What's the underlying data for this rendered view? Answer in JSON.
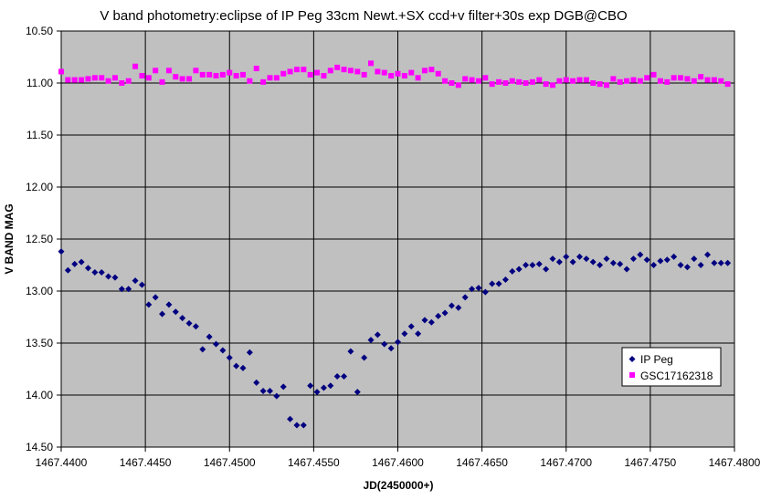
{
  "chart_data": {
    "type": "scatter",
    "title": "V band photometry:eclipse of IP Peg 33cm Newt.+SX ccd+v filter+30s exp DGB@CBO",
    "xlabel": "JD(2450000+)",
    "ylabel": "V BAND MAG",
    "xlim": [
      1467.44,
      1467.48
    ],
    "ylim": [
      10.5,
      14.5
    ],
    "y_inverted": true,
    "grid": true,
    "legend": "bottom-right",
    "plot_bg": "#c0c0c0",
    "x_ticks": [
      "1467.4400",
      "1467.4450",
      "1467.4500",
      "1467.4550",
      "1467.4600",
      "1467.4650",
      "1467.4700",
      "1467.4750",
      "1467.4800"
    ],
    "y_ticks": [
      "10.50",
      "11.00",
      "11.50",
      "12.00",
      "12.50",
      "13.00",
      "13.50",
      "14.00",
      "14.50"
    ],
    "series": [
      {
        "name": "IP Peg",
        "color": "#000080",
        "marker": "diamond",
        "points": [
          [
            1467.44,
            12.62
          ],
          [
            1467.4404,
            12.8
          ],
          [
            1467.4408,
            12.74
          ],
          [
            1467.4412,
            12.72
          ],
          [
            1467.4416,
            12.78
          ],
          [
            1467.442,
            12.82
          ],
          [
            1467.4424,
            12.82
          ],
          [
            1467.4428,
            12.86
          ],
          [
            1467.4432,
            12.87
          ],
          [
            1467.4436,
            12.98
          ],
          [
            1467.444,
            12.98
          ],
          [
            1467.4444,
            12.9
          ],
          [
            1467.4448,
            12.94
          ],
          [
            1467.4452,
            13.13
          ],
          [
            1467.4456,
            13.06
          ],
          [
            1467.446,
            13.22
          ],
          [
            1467.4464,
            13.13
          ],
          [
            1467.4468,
            13.2
          ],
          [
            1467.4472,
            13.26
          ],
          [
            1467.4476,
            13.31
          ],
          [
            1467.448,
            13.34
          ],
          [
            1467.4484,
            13.56
          ],
          [
            1467.4488,
            13.44
          ],
          [
            1467.4492,
            13.51
          ],
          [
            1467.4496,
            13.57
          ],
          [
            1467.45,
            13.64
          ],
          [
            1467.4504,
            13.72
          ],
          [
            1467.4508,
            13.74
          ],
          [
            1467.4512,
            13.59
          ],
          [
            1467.4516,
            13.88
          ],
          [
            1467.452,
            13.96
          ],
          [
            1467.4524,
            13.96
          ],
          [
            1467.4528,
            14.01
          ],
          [
            1467.4532,
            13.92
          ],
          [
            1467.4536,
            14.23
          ],
          [
            1467.454,
            14.29
          ],
          [
            1467.4544,
            14.29
          ],
          [
            1467.4548,
            13.91
          ],
          [
            1467.4552,
            13.97
          ],
          [
            1467.4556,
            13.93
          ],
          [
            1467.456,
            13.91
          ],
          [
            1467.4564,
            13.82
          ],
          [
            1467.4568,
            13.82
          ],
          [
            1467.4572,
            13.58
          ],
          [
            1467.4576,
            13.97
          ],
          [
            1467.458,
            13.64
          ],
          [
            1467.4584,
            13.47
          ],
          [
            1467.4588,
            13.42
          ],
          [
            1467.4592,
            13.51
          ],
          [
            1467.4596,
            13.55
          ],
          [
            1467.46,
            13.49
          ],
          [
            1467.4604,
            13.41
          ],
          [
            1467.4608,
            13.34
          ],
          [
            1467.4612,
            13.41
          ],
          [
            1467.4616,
            13.28
          ],
          [
            1467.462,
            13.3
          ],
          [
            1467.4624,
            13.24
          ],
          [
            1467.4628,
            13.21
          ],
          [
            1467.4632,
            13.14
          ],
          [
            1467.4636,
            13.16
          ],
          [
            1467.464,
            13.06
          ],
          [
            1467.4644,
            12.98
          ],
          [
            1467.4648,
            12.97
          ],
          [
            1467.4652,
            13.01
          ],
          [
            1467.4656,
            12.93
          ],
          [
            1467.466,
            12.93
          ],
          [
            1467.4664,
            12.89
          ],
          [
            1467.4668,
            12.81
          ],
          [
            1467.4672,
            12.79
          ],
          [
            1467.4676,
            12.75
          ],
          [
            1467.468,
            12.75
          ],
          [
            1467.4684,
            12.74
          ],
          [
            1467.4688,
            12.79
          ],
          [
            1467.4692,
            12.69
          ],
          [
            1467.4696,
            12.72
          ],
          [
            1467.47,
            12.67
          ],
          [
            1467.4704,
            12.72
          ],
          [
            1467.4708,
            12.67
          ],
          [
            1467.4712,
            12.69
          ],
          [
            1467.4716,
            12.72
          ],
          [
            1467.472,
            12.75
          ],
          [
            1467.4724,
            12.69
          ],
          [
            1467.4728,
            12.73
          ],
          [
            1467.4732,
            12.74
          ],
          [
            1467.4736,
            12.79
          ],
          [
            1467.474,
            12.69
          ],
          [
            1467.4744,
            12.65
          ],
          [
            1467.4748,
            12.7
          ],
          [
            1467.4752,
            12.75
          ],
          [
            1467.4756,
            12.71
          ],
          [
            1467.476,
            12.7
          ],
          [
            1467.4764,
            12.67
          ],
          [
            1467.4768,
            12.75
          ],
          [
            1467.4772,
            12.77
          ],
          [
            1467.4776,
            12.69
          ],
          [
            1467.478,
            12.75
          ],
          [
            1467.4784,
            12.65
          ],
          [
            1467.4788,
            12.73
          ],
          [
            1467.4792,
            12.73
          ],
          [
            1467.4796,
            12.73
          ]
        ]
      },
      {
        "name": "GSC17162318",
        "color": "#ff00ff",
        "marker": "square",
        "points": [
          [
            1467.44,
            10.89
          ],
          [
            1467.4404,
            10.97
          ],
          [
            1467.4408,
            10.97
          ],
          [
            1467.4412,
            10.97
          ],
          [
            1467.4416,
            10.96
          ],
          [
            1467.442,
            10.95
          ],
          [
            1467.4424,
            10.95
          ],
          [
            1467.4428,
            10.98
          ],
          [
            1467.4432,
            10.95
          ],
          [
            1467.4436,
            11.0
          ],
          [
            1467.444,
            10.98
          ],
          [
            1467.4444,
            10.84
          ],
          [
            1467.4448,
            10.93
          ],
          [
            1467.4452,
            10.95
          ],
          [
            1467.4456,
            10.88
          ],
          [
            1467.446,
            10.99
          ],
          [
            1467.4464,
            10.88
          ],
          [
            1467.4468,
            10.94
          ],
          [
            1467.4472,
            10.96
          ],
          [
            1467.4476,
            10.96
          ],
          [
            1467.448,
            10.88
          ],
          [
            1467.4484,
            10.92
          ],
          [
            1467.4488,
            10.92
          ],
          [
            1467.4492,
            10.93
          ],
          [
            1467.4496,
            10.92
          ],
          [
            1467.45,
            10.9
          ],
          [
            1467.4504,
            10.93
          ],
          [
            1467.4508,
            10.92
          ],
          [
            1467.4512,
            10.98
          ],
          [
            1467.4516,
            10.86
          ],
          [
            1467.452,
            10.99
          ],
          [
            1467.4524,
            10.95
          ],
          [
            1467.4528,
            10.95
          ],
          [
            1467.4532,
            10.91
          ],
          [
            1467.4536,
            10.89
          ],
          [
            1467.454,
            10.87
          ],
          [
            1467.4544,
            10.87
          ],
          [
            1467.4548,
            10.92
          ],
          [
            1467.4552,
            10.9
          ],
          [
            1467.4556,
            10.93
          ],
          [
            1467.456,
            10.88
          ],
          [
            1467.4564,
            10.85
          ],
          [
            1467.4568,
            10.87
          ],
          [
            1467.4572,
            10.88
          ],
          [
            1467.4576,
            10.89
          ],
          [
            1467.458,
            10.92
          ],
          [
            1467.4584,
            10.81
          ],
          [
            1467.4588,
            10.89
          ],
          [
            1467.4592,
            10.9
          ],
          [
            1467.4596,
            10.93
          ],
          [
            1467.46,
            10.91
          ],
          [
            1467.4604,
            10.93
          ],
          [
            1467.4608,
            10.9
          ],
          [
            1467.4612,
            10.95
          ],
          [
            1467.4616,
            10.88
          ],
          [
            1467.462,
            10.87
          ],
          [
            1467.4624,
            10.91
          ],
          [
            1467.4628,
            10.98
          ],
          [
            1467.4632,
            11.0
          ],
          [
            1467.4636,
            11.02
          ],
          [
            1467.464,
            10.96
          ],
          [
            1467.4644,
            10.97
          ],
          [
            1467.4648,
            10.98
          ],
          [
            1467.4652,
            10.95
          ],
          [
            1467.4656,
            11.01
          ],
          [
            1467.466,
            10.99
          ],
          [
            1467.4664,
            11.0
          ],
          [
            1467.4668,
            10.98
          ],
          [
            1467.4672,
            10.99
          ],
          [
            1467.4676,
            11.0
          ],
          [
            1467.468,
            10.99
          ],
          [
            1467.4684,
            10.97
          ],
          [
            1467.4688,
            11.01
          ],
          [
            1467.4692,
            11.02
          ],
          [
            1467.4696,
            10.98
          ],
          [
            1467.47,
            10.97
          ],
          [
            1467.4704,
            10.98
          ],
          [
            1467.4708,
            10.97
          ],
          [
            1467.4712,
            10.97
          ],
          [
            1467.4716,
            11.0
          ],
          [
            1467.472,
            11.01
          ],
          [
            1467.4724,
            11.02
          ],
          [
            1467.4728,
            10.96
          ],
          [
            1467.4732,
            10.99
          ],
          [
            1467.4736,
            10.98
          ],
          [
            1467.474,
            10.97
          ],
          [
            1467.4744,
            10.98
          ],
          [
            1467.4748,
            10.95
          ],
          [
            1467.4752,
            10.92
          ],
          [
            1467.4756,
            10.98
          ],
          [
            1467.476,
            10.99
          ],
          [
            1467.4764,
            10.95
          ],
          [
            1467.4768,
            10.95
          ],
          [
            1467.4772,
            10.96
          ],
          [
            1467.4776,
            10.98
          ],
          [
            1467.478,
            10.94
          ],
          [
            1467.4784,
            10.97
          ],
          [
            1467.4788,
            10.97
          ],
          [
            1467.4792,
            10.98
          ],
          [
            1467.4796,
            11.01
          ]
        ]
      }
    ]
  }
}
